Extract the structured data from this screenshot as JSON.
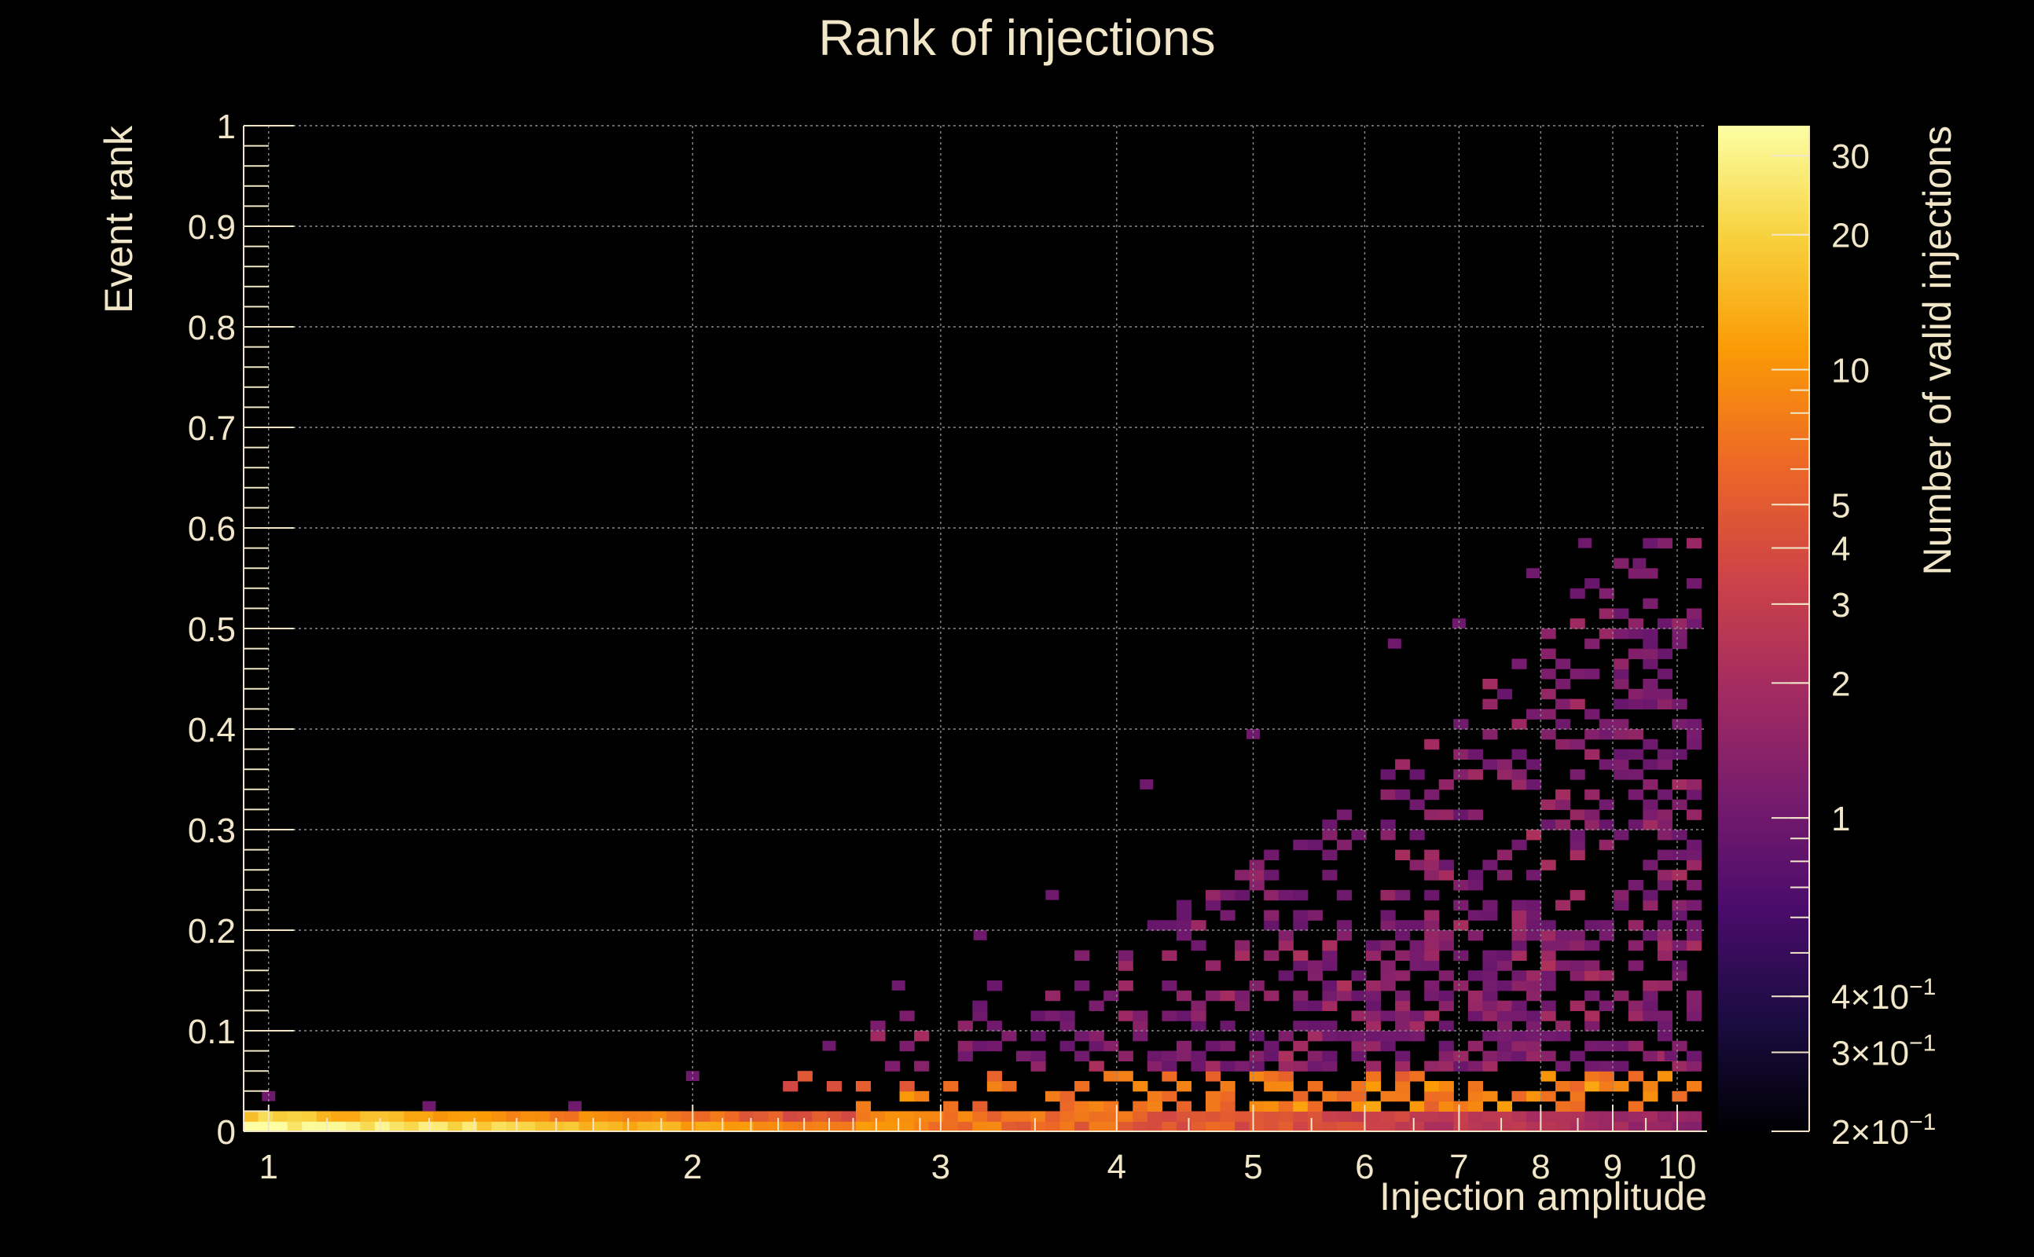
{
  "chart_data": {
    "type": "heatmap",
    "title": "Rank of injections",
    "xlabel": "Injection amplitude",
    "ylabel": "Event rank",
    "zlabel": "Number of valid injections",
    "x_scale": "log",
    "x_range": [
      0.96,
      10.5
    ],
    "y_range": [
      0,
      1
    ],
    "z_scale": "log",
    "z_range": [
      0.2,
      35
    ],
    "grid": true,
    "colorbar": "right",
    "x_ticks": [
      "1",
      "2",
      "3",
      "4",
      "5",
      "6",
      "7",
      "8",
      "9",
      "10"
    ],
    "y_ticks": [
      "0",
      "0.1",
      "0.2",
      "0.3",
      "0.4",
      "0.5",
      "0.6",
      "0.7",
      "0.8",
      "0.9",
      "1"
    ],
    "z_ticks": [
      {
        "value": 30,
        "label": "30"
      },
      {
        "value": 20,
        "label": "20"
      },
      {
        "value": 10,
        "label": "10"
      },
      {
        "value": 5,
        "label": "5"
      },
      {
        "value": 4,
        "label": "4"
      },
      {
        "value": 3,
        "label": "3"
      },
      {
        "value": 2,
        "label": "2"
      },
      {
        "value": 1,
        "label": "1"
      },
      {
        "value": 0.4,
        "label": "4×10",
        "exp": "−1"
      },
      {
        "value": 0.3,
        "label": "3×10",
        "exp": "−1"
      },
      {
        "value": 0.2,
        "label": "2×10",
        "exp": "−1"
      }
    ],
    "colormap": [
      "#000004",
      "#1b0c41",
      "#4a0c6b",
      "#781c6d",
      "#a52c60",
      "#cf4446",
      "#ed6925",
      "#fb9b06",
      "#f7d13d",
      "#fcffa4"
    ],
    "n_xbins": 100,
    "n_ybins": 100,
    "x_bin_range": [
      0.96,
      10.4
    ],
    "y_bin_width": 0.01,
    "density_note_only": "",
    "bins": {
      "band_start": 0.96,
      "band_y": [
        0.0,
        0.02
      ],
      "band_values_low_x": [
        30,
        25,
        20,
        15,
        12,
        10,
        8
      ],
      "sample": [
        {
          "x": 1.0,
          "y": 0.035,
          "v": 1
        },
        {
          "x": 1.3,
          "y": 0.025,
          "v": 1
        },
        {
          "x": 1.65,
          "y": 0.025,
          "v": 1
        },
        {
          "x": 2.0,
          "y": 0.055,
          "v": 1
        },
        {
          "x": 2.5,
          "y": 0.085,
          "v": 1
        },
        {
          "x": 2.8,
          "y": 0.145,
          "v": 1
        },
        {
          "x": 3.2,
          "y": 0.195,
          "v": 1
        },
        {
          "x": 3.6,
          "y": 0.235,
          "v": 1
        },
        {
          "x": 4.2,
          "y": 0.345,
          "v": 1
        },
        {
          "x": 5.0,
          "y": 0.395,
          "v": 1
        },
        {
          "x": 6.3,
          "y": 0.485,
          "v": 1
        },
        {
          "x": 7.0,
          "y": 0.505,
          "v": 1
        },
        {
          "x": 7.9,
          "y": 0.555,
          "v": 1
        },
        {
          "x": 8.6,
          "y": 0.585,
          "v": 1
        },
        {
          "x": 9.4,
          "y": 0.565,
          "v": 1
        },
        {
          "x": 9.9,
          "y": 0.075,
          "v": 1
        }
      ]
    }
  }
}
